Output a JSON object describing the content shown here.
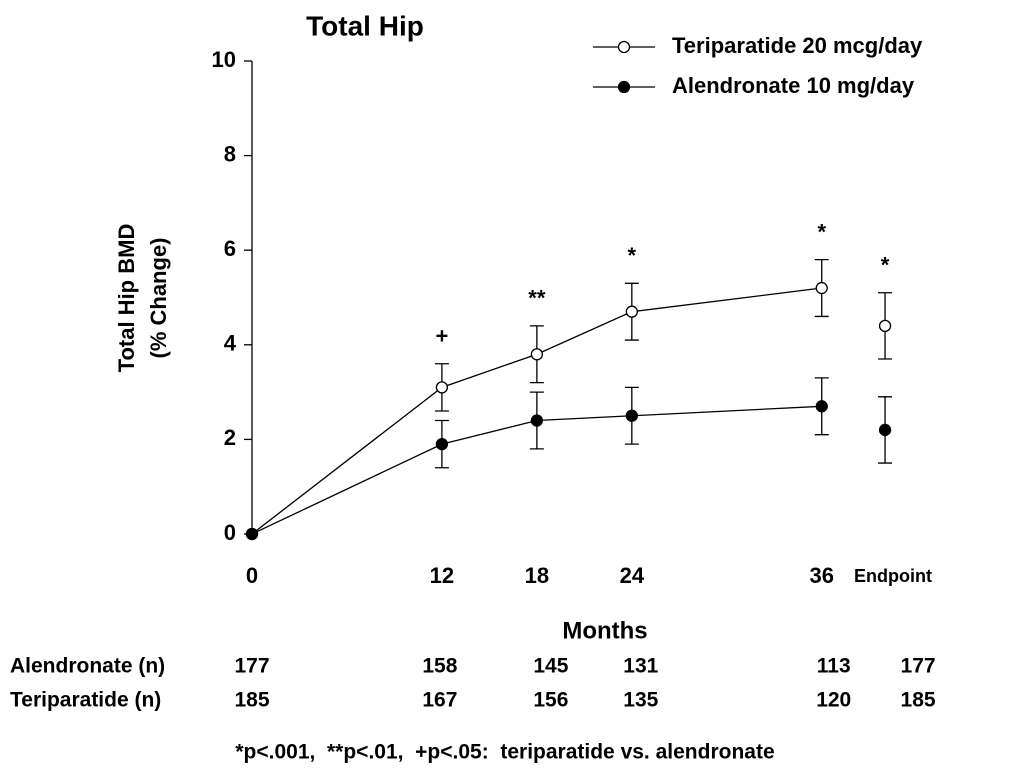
{
  "chart_data": {
    "type": "line",
    "title": "Total Hip",
    "ylabel": [
      "Total Hip BMD",
      "(% Change)"
    ],
    "xlabel": "Months",
    "x": [
      0,
      12,
      18,
      24,
      36
    ],
    "xlim": [
      0,
      46
    ],
    "xticks": [
      0,
      12,
      18,
      24,
      36,
      {
        "value": 40,
        "label": "Endpoint"
      }
    ],
    "ylim": [
      0,
      10
    ],
    "yticks": [
      0,
      2,
      4,
      6,
      8,
      10
    ],
    "endpoint_x": 40,
    "series": [
      {
        "name": "Teriparatide 20 mcg/day",
        "color": "#000000",
        "marker": "open",
        "values": [
          0,
          3.1,
          3.8,
          4.7,
          5.2
        ],
        "errors": [
          null,
          0.5,
          0.6,
          0.6,
          0.6
        ],
        "endpoint": 4.4,
        "endpoint_error": 0.7
      },
      {
        "name": "Alendronate 10 mg/day",
        "color": "#000000",
        "marker": "filled",
        "values": [
          0,
          1.9,
          2.4,
          2.5,
          2.7
        ],
        "errors": [
          null,
          0.5,
          0.6,
          0.6,
          0.6
        ],
        "endpoint": 2.2,
        "endpoint_error": 0.7
      }
    ],
    "significance": [
      null,
      "+",
      "**",
      "*",
      "*"
    ],
    "endpoint_significance": "*",
    "legend": "upper right",
    "n_table": [
      {
        "label": "Alendronate (n)",
        "values": [
          177,
          158,
          145,
          131,
          113,
          177
        ]
      },
      {
        "label": "Teriparatide (n)",
        "values": [
          185,
          167,
          156,
          135,
          120,
          185
        ]
      }
    ],
    "footnote": "*p<.001,  **p<.01,  +p<.05:  teriparatide vs. alendronate"
  }
}
